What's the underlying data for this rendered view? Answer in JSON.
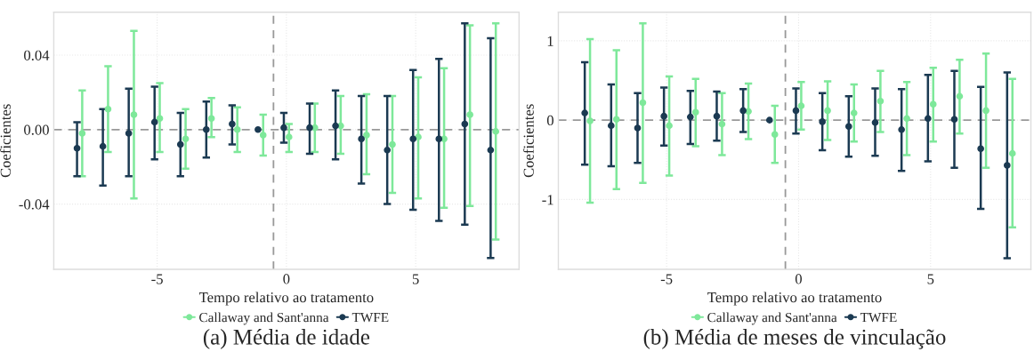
{
  "chart_data": [
    {
      "type": "scatter",
      "title": "(a) Média de idade",
      "xlabel": "Tempo relativo ao tratamento",
      "ylabel": "Coeficientes",
      "xlim": [
        -9,
        9
      ],
      "xticks": [
        -5,
        0,
        5
      ],
      "ylim": [
        -0.075,
        0.063
      ],
      "yticks": [
        {
          "value": -0.04,
          "label": "-0.04"
        },
        {
          "value": 0,
          "label": "0.00"
        },
        {
          "value": 0.04,
          "label": "0.04"
        }
      ],
      "grid": true,
      "legend": "bottom",
      "marker": "circle",
      "ref_lines": [
        {
          "axis": "y",
          "value": 0,
          "color": "#999999",
          "line_style": "dashed"
        },
        {
          "axis": "x",
          "value": -0.5,
          "color": "#999999",
          "line_style": "dashed"
        }
      ],
      "series": [
        {
          "name": "Callaway and Sant'anna",
          "color": "#7ee89a",
          "x": [
            -7.9,
            -6.9,
            -5.9,
            -4.9,
            -3.9,
            -2.9,
            -1.9,
            -0.9,
            0.1,
            1.1,
            2.1,
            3.1,
            4.1,
            5.1,
            6.1,
            7.1,
            8.1
          ],
          "values": [
            -0.002,
            0.011,
            0.008,
            0.006,
            -0.005,
            0.006,
            0.0,
            -0.003,
            -0.004,
            0.001,
            0.002,
            -0.003,
            -0.008,
            -0.004,
            -0.005,
            0.008,
            -0.001
          ],
          "errors": [
            [
              -0.025,
              0.021
            ],
            [
              -0.012,
              0.034
            ],
            [
              -0.037,
              0.053
            ],
            [
              -0.012,
              0.025
            ],
            [
              -0.021,
              0.011
            ],
            [
              -0.004,
              0.017
            ],
            [
              -0.012,
              0.012
            ],
            [
              -0.014,
              0.008
            ],
            [
              -0.012,
              0.003
            ],
            [
              -0.012,
              0.014
            ],
            [
              -0.013,
              0.018
            ],
            [
              -0.024,
              0.019
            ],
            [
              -0.034,
              0.018
            ],
            [
              -0.037,
              0.028
            ],
            [
              -0.042,
              0.033
            ],
            [
              -0.041,
              0.056
            ],
            [
              -0.059,
              0.057
            ]
          ]
        },
        {
          "name": "TWFE",
          "color": "#1b3a52",
          "x": [
            -8.1,
            -7.1,
            -6.1,
            -5.1,
            -4.1,
            -3.1,
            -2.1,
            -1.1,
            -0.1,
            0.9,
            1.9,
            2.9,
            3.9,
            4.9,
            5.9,
            6.9,
            7.9
          ],
          "values": [
            -0.01,
            -0.009,
            -0.002,
            0.004,
            -0.008,
            0.0,
            0.003,
            0.0,
            0.001,
            0.001,
            0.002,
            -0.005,
            -0.011,
            -0.005,
            -0.005,
            0.003,
            -0.011
          ],
          "errors": [
            [
              -0.025,
              0.004
            ],
            [
              -0.03,
              0.011
            ],
            [
              -0.025,
              0.022
            ],
            [
              -0.016,
              0.023
            ],
            [
              -0.025,
              0.009
            ],
            [
              -0.015,
              0.015
            ],
            [
              -0.008,
              0.013
            ],
            null,
            [
              -0.007,
              0.009
            ],
            [
              -0.013,
              0.014
            ],
            [
              -0.016,
              0.021
            ],
            [
              -0.029,
              0.018
            ],
            [
              -0.04,
              0.018
            ],
            [
              -0.043,
              0.032
            ],
            [
              -0.049,
              0.038
            ],
            [
              -0.051,
              0.057
            ],
            [
              -0.069,
              0.049
            ]
          ]
        }
      ]
    },
    {
      "type": "scatter",
      "title": "(b) Média de meses de vinculação",
      "xlabel": "Tempo relativo ao tratamento",
      "ylabel": "Coeficientes",
      "xlim": [
        -9.1,
        8.8
      ],
      "xticks": [
        -5,
        0,
        5
      ],
      "ylim": [
        -1.88,
        1.36
      ],
      "yticks": [
        -1,
        0,
        1
      ],
      "grid": true,
      "legend": "bottom",
      "marker": "circle",
      "ref_lines": [
        {
          "axis": "y",
          "value": 0,
          "color": "#999999",
          "line_style": "dashed"
        },
        {
          "axis": "x",
          "value": -0.5,
          "color": "#999999",
          "line_style": "dashed"
        }
      ],
      "series": [
        {
          "name": "Callaway and Sant'anna",
          "color": "#7ee89a",
          "x": [
            -7.9,
            -6.9,
            -5.9,
            -4.9,
            -3.9,
            -2.9,
            -1.9,
            -0.9,
            0.1,
            1.1,
            2.1,
            3.1,
            4.1,
            5.1,
            6.1,
            7.1,
            8.1
          ],
          "values": [
            -0.01,
            0.01,
            0.22,
            -0.07,
            0.1,
            -0.05,
            0.11,
            -0.18,
            0.18,
            0.12,
            0.09,
            0.24,
            0.02,
            0.2,
            0.3,
            0.12,
            -0.42
          ],
          "errors": [
            [
              -1.04,
              1.02
            ],
            [
              -0.87,
              0.88
            ],
            [
              -0.79,
              1.22
            ],
            [
              -0.7,
              0.55
            ],
            [
              -0.33,
              0.52
            ],
            [
              -0.44,
              0.34
            ],
            [
              -0.24,
              0.46
            ],
            [
              -0.54,
              0.18
            ],
            [
              -0.12,
              0.48
            ],
            [
              -0.25,
              0.49
            ],
            [
              -0.27,
              0.45
            ],
            [
              -0.15,
              0.62
            ],
            [
              -0.44,
              0.48
            ],
            [
              -0.27,
              0.66
            ],
            [
              -0.17,
              0.76
            ],
            [
              -0.6,
              0.84
            ],
            [
              -1.35,
              0.52
            ]
          ]
        },
        {
          "name": "TWFE",
          "color": "#1b3a52",
          "x": [
            -8.1,
            -7.1,
            -6.1,
            -5.1,
            -4.1,
            -3.1,
            -2.1,
            -1.1,
            -0.1,
            0.9,
            1.9,
            2.9,
            3.9,
            4.9,
            5.9,
            6.9,
            7.9
          ],
          "values": [
            0.09,
            -0.07,
            -0.1,
            0.05,
            0.04,
            0.05,
            0.12,
            0.0,
            0.12,
            -0.02,
            -0.08,
            -0.03,
            -0.12,
            0.02,
            0.01,
            -0.36,
            -0.57
          ],
          "errors": [
            [
              -0.56,
              0.73
            ],
            [
              -0.58,
              0.45
            ],
            [
              -0.54,
              0.34
            ],
            [
              -0.32,
              0.41
            ],
            [
              -0.3,
              0.37
            ],
            [
              -0.26,
              0.36
            ],
            [
              -0.15,
              0.39
            ],
            null,
            [
              -0.17,
              0.4
            ],
            [
              -0.38,
              0.34
            ],
            [
              -0.46,
              0.3
            ],
            [
              -0.45,
              0.4
            ],
            [
              -0.64,
              0.39
            ],
            [
              -0.52,
              0.57
            ],
            [
              -0.6,
              0.62
            ],
            [
              -1.12,
              0.42
            ],
            [
              -1.74,
              0.6
            ]
          ]
        }
      ]
    }
  ]
}
